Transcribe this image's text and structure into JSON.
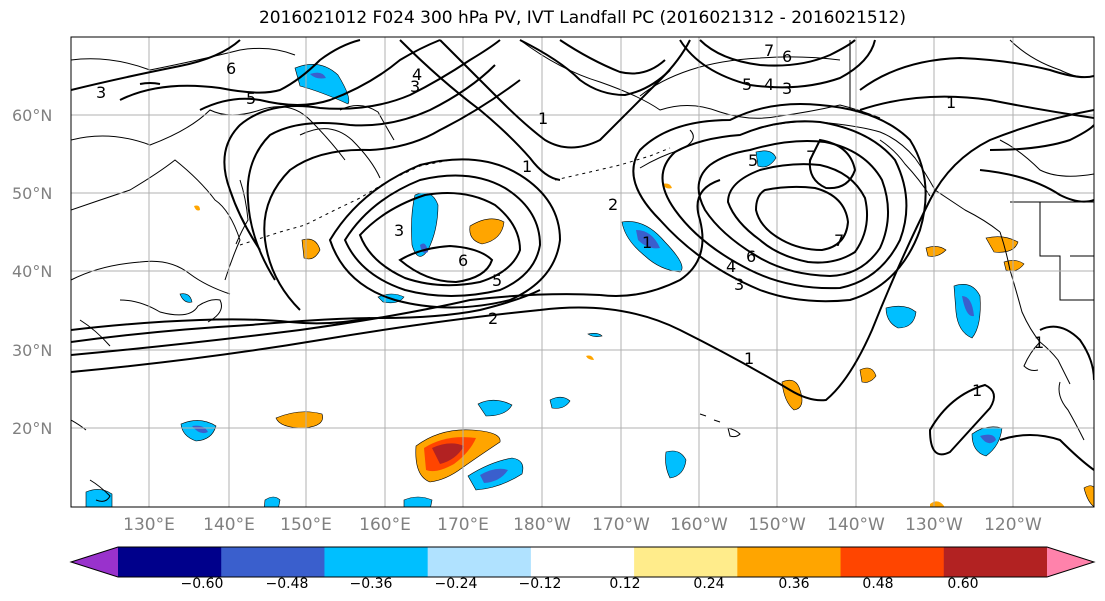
{
  "title": "2016021012 F024 300 hPa PV, IVT Landfall PC (2016021312 - 2016021512)",
  "lat_labels": [
    "60°N",
    "50°N",
    "40°N",
    "30°N",
    "20°N"
  ],
  "lon_labels": [
    "130°E",
    "140°E",
    "150°E",
    "160°E",
    "170°E",
    "180°W",
    "170°W",
    "160°W",
    "150°W",
    "140°W",
    "130°W",
    "120°W"
  ],
  "colorbar": {
    "colors": [
      "#9932cc",
      "#00008b",
      "#3a5fcd",
      "#00bfff",
      "#b0e2ff",
      "#ffffff",
      "#ffec8b",
      "#ffa500",
      "#ff4500",
      "#b22222",
      "#ff82ab"
    ],
    "tick_labels": [
      "−0.60",
      "−0.48",
      "−0.36",
      "−0.24",
      "−0.12",
      "0.12",
      "0.24",
      "0.36",
      "0.48",
      "0.60"
    ]
  },
  "contour_labels": [
    "3",
    "6",
    "5",
    "4",
    "3",
    "1",
    "1",
    "2",
    "6",
    "5",
    "2",
    "3",
    "1",
    "5",
    "4",
    "3",
    "7",
    "6",
    "7",
    "5",
    "6",
    "4",
    "3",
    "1",
    "1",
    "7",
    "1",
    "1"
  ]
}
